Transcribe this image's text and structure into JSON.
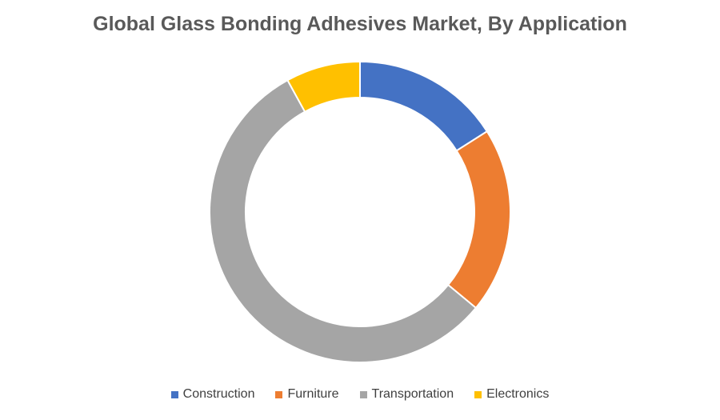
{
  "chart_data": {
    "type": "pie",
    "style": "donut",
    "title": "Global Glass Bonding Adhesives Market, By Application",
    "categories": [
      "Construction",
      "Furniture",
      "Transportation",
      "Electronics"
    ],
    "values": [
      16,
      20,
      56,
      8
    ],
    "unit": "%",
    "colors": [
      "#4472C4",
      "#ED7D31",
      "#A5A5A5",
      "#FFC000"
    ],
    "legend_position": "bottom"
  }
}
